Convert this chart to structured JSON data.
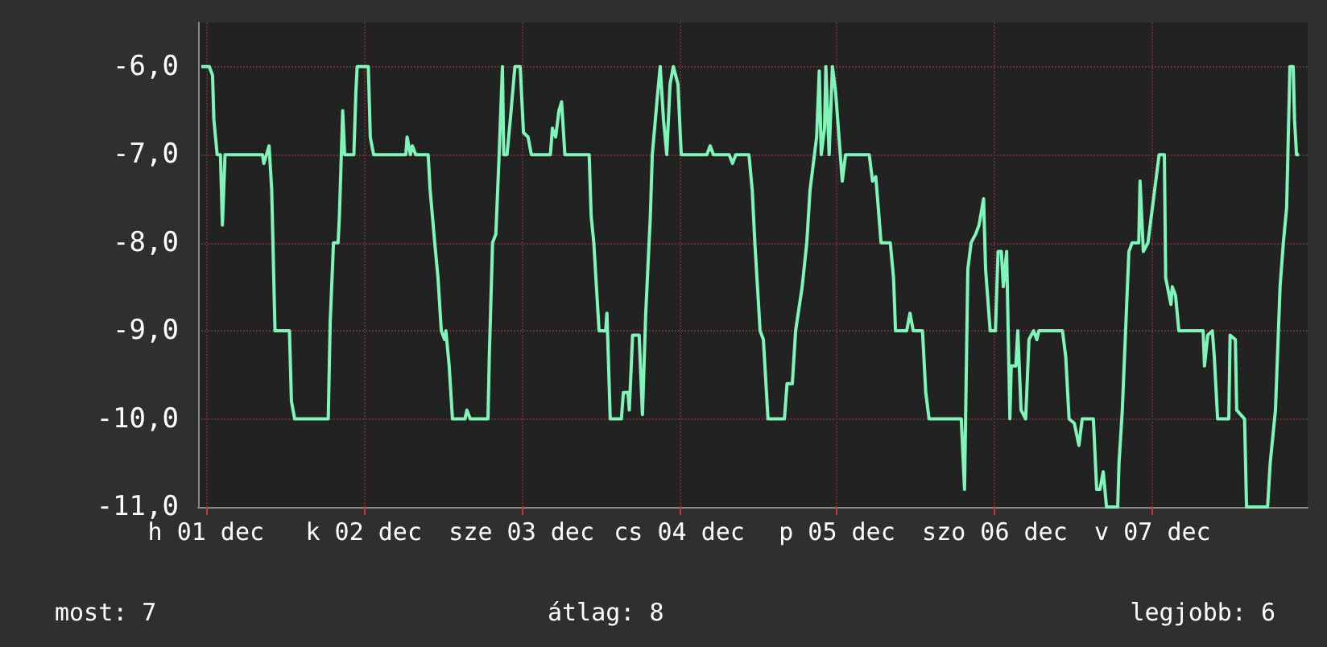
{
  "chart_data": {
    "type": "line",
    "annotations": [
      "most: 7",
      "átlag: 8",
      "legjobb: 6"
    ],
    "xlim": [
      "--11-30T22:48",
      "--12-07T23:36"
    ],
    "ylim": [
      -11,
      -5.5
    ],
    "xticks": [
      {
        "value": "--12-01",
        "label": "h 01 dec"
      },
      {
        "value": "--12-02",
        "label": "k 02 dec"
      },
      {
        "value": "--12-03",
        "label": "sze 03 dec"
      },
      {
        "value": "--12-04",
        "label": "cs 04 dec"
      },
      {
        "value": "--12-05",
        "label": "p 05 dec"
      },
      {
        "value": "--12-06",
        "label": "szo 06 dec"
      },
      {
        "value": "--12-07",
        "label": "v 07 dec"
      }
    ],
    "yticks": [
      {
        "value": -11,
        "label": "-11,0"
      },
      {
        "value": -10,
        "label": "-10,0"
      },
      {
        "value": -9,
        "label": "-9,0"
      },
      {
        "value": -8,
        "label": "-8,0"
      },
      {
        "value": -7,
        "label": "-7,0"
      },
      {
        "value": -6,
        "label": "-6,0"
      }
    ],
    "grid": true,
    "marker": "none",
    "line_style": "solid",
    "series": [
      {
        "color": "#7ff5b8",
        "x": [
          "--11-30T23:18",
          "--12-01T00:30",
          "--12-01T01:00",
          "--12-01T01:12",
          "--12-01T01:42",
          "--12-01T02:12",
          "--12-01T02:30",
          "--12-01T02:54",
          "--12-01T08:36",
          "--12-01T08:48",
          "--12-01T09:36",
          "--12-01T10:00",
          "--12-01T10:30",
          "--12-01T12:42",
          "--12-01T13:00",
          "--12-01T13:30",
          "--12-01T18:36",
          "--12-01T18:54",
          "--12-01T19:24",
          "--12-01T20:06",
          "--12-01T20:18",
          "--12-01T20:48",
          "--12-01T21:06",
          "--12-01T22:30",
          "--12-01T22:48",
          "--12-01T23:00",
          "--12-02T00:42",
          "--12-02T01:00",
          "--12-02T01:30",
          "--12-02T06:24",
          "--12-02T06:36",
          "--12-02T07:06",
          "--12-02T07:24",
          "--12-02T07:54",
          "--12-02T09:48",
          "--12-02T10:06",
          "--12-02T10:48",
          "--12-02T11:18",
          "--12-02T11:48",
          "--12-02T12:18",
          "--12-02T12:30",
          "--12-02T13:00",
          "--12-02T13:30",
          "--12-02T15:24",
          "--12-02T15:42",
          "--12-02T16:12",
          "--12-02T18:54",
          "--12-02T19:06",
          "--12-02T19:36",
          "--12-02T20:06",
          "--12-02T20:36",
          "--12-02T21:06",
          "--12-02T21:18",
          "--12-02T21:48",
          "--12-02T22:18",
          "--12-02T23:00",
          "--12-02T23:48",
          "--12-03T00:18",
          "--12-03T01:00",
          "--12-03T01:30",
          "--12-03T04:24",
          "--12-03T04:42",
          "--12-03T05:12",
          "--12-03T05:42",
          "--12-03T06:06",
          "--12-03T06:36",
          "--12-03T10:18",
          "--12-03T10:36",
          "--12-03T11:00",
          "--12-03T11:48",
          "--12-03T12:48",
          "--12-03T13:00",
          "--12-03T13:30",
          "--12-03T15:12",
          "--12-03T15:30",
          "--12-03T16:12",
          "--12-03T16:24",
          "--12-03T16:54",
          "--12-03T17:54",
          "--12-03T18:24",
          "--12-03T18:54",
          "--12-03T19:36",
          "--12-03T19:54",
          "--12-03T20:36",
          "--12-03T21:06",
          "--12-03T21:36",
          "--12-03T22:06",
          "--12-03T22:36",
          "--12-03T23:06",
          "--12-03T23:48",
          "--12-04T00:18",
          "--12-04T04:12",
          "--12-04T04:42",
          "--12-04T05:12",
          "--12-04T07:36",
          "--12-04T08:06",
          "--12-04T08:36",
          "--12-04T10:36",
          "--12-04T11:06",
          "--12-04T11:30",
          "--12-04T12:18",
          "--12-04T12:48",
          "--12-04T13:30",
          "--12-04T16:00",
          "--12-04T16:24",
          "--12-04T17:12",
          "--12-04T17:42",
          "--12-04T18:42",
          "--12-04T19:24",
          "--12-04T19:54",
          "--12-04T20:54",
          "--12-04T21:18",
          "--12-04T21:36",
          "--12-04T22:06",
          "--12-04T22:18",
          "--12-04T22:48",
          "--12-04T23:18",
          "--12-04T23:48",
          "--12-05T00:30",
          "--12-05T00:48",
          "--12-05T01:18",
          "--12-05T04:54",
          "--12-05T05:24",
          "--12-05T05:54",
          "--12-05T06:42",
          "--12-05T08:06",
          "--12-05T08:36",
          "--12-05T08:54",
          "--12-05T10:36",
          "--12-05T11:06",
          "--12-05T11:36",
          "--12-05T13:00",
          "--12-05T13:30",
          "--12-05T14:00",
          "--12-05T18:54",
          "--12-05T19:24",
          "--12-05T19:54",
          "--12-05T20:24",
          "--12-05T21:06",
          "--12-05T21:36",
          "--12-05T22:18",
          "--12-05T22:36",
          "--12-05T23:18",
          "--12-06T00:06",
          "--12-06T00:30",
          "--12-06T01:00",
          "--12-06T01:18",
          "--12-06T01:48",
          "--12-06T02:18",
          "--12-06T02:30",
          "--12-06T03:12",
          "--12-06T03:30",
          "--12-06T04:00",
          "--12-06T04:42",
          "--12-06T05:12",
          "--12-06T05:54",
          "--12-06T06:24",
          "--12-06T06:42",
          "--12-06T10:18",
          "--12-06T10:48",
          "--12-06T11:18",
          "--12-06T12:06",
          "--12-06T12:48",
          "--12-06T13:18",
          "--12-06T15:00",
          "--12-06T15:30",
          "--12-06T16:00",
          "--12-06T16:30",
          "--12-06T17:00",
          "--12-06T18:42",
          "--12-06T18:54",
          "--12-06T19:24",
          "--12-06T19:54",
          "--12-06T20:24",
          "--12-06T20:54",
          "--12-06T21:54",
          "--12-06T22:06",
          "--12-06T22:36",
          "--12-06T23:18",
          "--12-07T01:00",
          "--12-07T01:48",
          "--12-07T02:00",
          "--12-07T02:48",
          "--12-07T03:00",
          "--12-07T03:30",
          "--12-07T04:00",
          "--12-07T07:42",
          "--12-07T07:54",
          "--12-07T08:24",
          "--12-07T09:06",
          "--12-07T09:24",
          "--12-07T09:54",
          "--12-07T11:36",
          "--12-07T11:48",
          "--12-07T12:36",
          "--12-07T12:48",
          "--12-07T14:00",
          "--12-07T14:18",
          "--12-07T17:30",
          "--12-07T17:54",
          "--12-07T18:42",
          "--12-07T19:24",
          "--12-07T19:54",
          "--12-07T20:24",
          "--12-07T20:54",
          "--12-07T21:24",
          "--12-07T21:36",
          "--12-07T21:54",
          "--12-07T22:18"
        ],
        "values": [
          -6,
          -6,
          -6.1,
          -6.6,
          -7,
          -7,
          -7.8,
          -7,
          -7,
          -7.1,
          -6.9,
          -7.4,
          -9,
          -9,
          -9.8,
          -10,
          -10,
          -8.9,
          -8,
          -8,
          -7.7,
          -6.5,
          -7,
          -7,
          -6.3,
          -6,
          -6,
          -6.8,
          -7,
          -7,
          -6.8,
          -7,
          -6.9,
          -7,
          -7,
          -7.4,
          -8,
          -8.4,
          -9,
          -9.1,
          -9,
          -9.4,
          -10,
          -10,
          -9.9,
          -10,
          -10,
          -9.3,
          -8,
          -7.9,
          -7,
          -6,
          -7,
          -7,
          -6.6,
          -6,
          -6,
          -6.75,
          -6.8,
          -7,
          -7,
          -6.7,
          -6.8,
          -6.5,
          -6.4,
          -7,
          -7,
          -7.7,
          -8,
          -9,
          -9,
          -8.8,
          -10,
          -10,
          -9.7,
          -9.7,
          -9.9,
          -9.05,
          -9.05,
          -9.95,
          -8.8,
          -7.7,
          -7,
          -6.4,
          -6,
          -6.6,
          -7,
          -6.2,
          -6,
          -6.2,
          -7,
          -7,
          -6.9,
          -7,
          -7,
          -7.1,
          -7,
          -7,
          -7.4,
          -8,
          -9,
          -9.1,
          -10,
          -10,
          -9.6,
          -9.6,
          -9,
          -8.5,
          -8,
          -7.4,
          -6.8,
          -6.05,
          -7,
          -6.7,
          -6,
          -7,
          -6,
          -6.3,
          -7,
          -7.3,
          -7,
          -7,
          -7.3,
          -7.25,
          -8,
          -8,
          -8.4,
          -9,
          -9,
          -8.8,
          -9,
          -9,
          -9.7,
          -10,
          -10,
          -10.8,
          -8.3,
          -8,
          -7.9,
          -7.8,
          -7.5,
          -8.3,
          -9,
          -9,
          -8.1,
          -8.1,
          -8.5,
          -8.1,
          -10,
          -9.4,
          -9.4,
          -9,
          -9.9,
          -10,
          -9.1,
          -9,
          -9.1,
          -9,
          -9,
          -9.3,
          -10,
          -10.05,
          -10.3,
          -10,
          -10,
          -10.8,
          -10.8,
          -10.6,
          -11,
          -11,
          -10.5,
          -9.9,
          -9,
          -8.1,
          -8,
          -8,
          -7.3,
          -8.1,
          -8,
          -7,
          -7,
          -8.4,
          -8.7,
          -8.5,
          -8.6,
          -9,
          -9,
          -9.4,
          -9.05,
          -9,
          -9.3,
          -10,
          -10,
          -9.05,
          -9.1,
          -9.9,
          -10,
          -11,
          -11,
          -10.5,
          -9.9,
          -8.5,
          -8,
          -7.6,
          -6,
          -6,
          -6.6,
          -7,
          -7
        ]
      }
    ]
  }
}
